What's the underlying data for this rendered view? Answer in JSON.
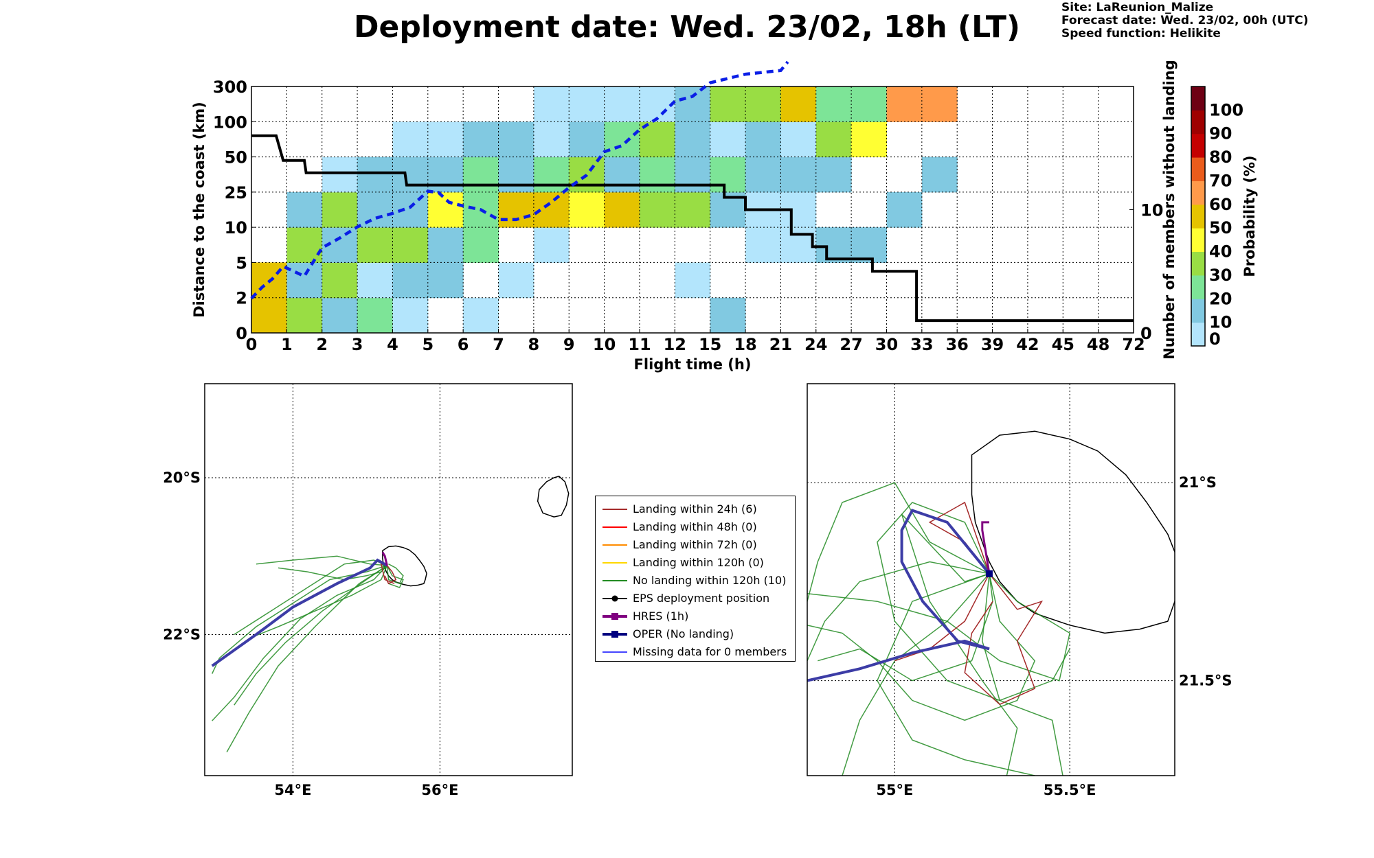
{
  "header": {
    "title": "Deployment date: Wed. 23/02, 18h (LT)",
    "site": "Site: LaReunion_Malize",
    "forecast": "Forecast date: Wed. 23/02, 00h (UTC)",
    "speed": "Speed function: Helikite"
  },
  "chart_data": [
    {
      "type": "heatmap",
      "xlabel": "Flight time (h)",
      "ylabel": "Distance to the coast (km)",
      "y2label": "Number of members without landing",
      "x_ticks": [
        "0",
        "1",
        "2",
        "3",
        "4",
        "5",
        "6",
        "7",
        "8",
        "9",
        "10",
        "11",
        "12",
        "15",
        "18",
        "21",
        "24",
        "27",
        "30",
        "33",
        "36",
        "39",
        "42",
        "45",
        "48",
        "72"
      ],
      "y_ticks": [
        "0",
        "2",
        "5",
        "10",
        "25",
        "50",
        "100",
        "300"
      ],
      "y2_ticks": [
        "0",
        "10"
      ],
      "y2lim": [
        0,
        20
      ],
      "grid": true,
      "colorbar": {
        "label": "Probability (%)",
        "ticks": [
          "0",
          "10",
          "20",
          "30",
          "40",
          "50",
          "60",
          "70",
          "80",
          "90",
          "100"
        ],
        "colors": [
          "#b3e5fc",
          "#81c9e1",
          "#7de497",
          "#99dd44",
          "#ffff33",
          "#e5c300",
          "#ff9a4a",
          "#ea5c1c",
          "#c40000",
          "#9f0000",
          "#6e0014"
        ]
      },
      "cells": [
        [
          0,
          0,
          50
        ],
        [
          0,
          1,
          50
        ],
        [
          1,
          0,
          30
        ],
        [
          1,
          1,
          10
        ],
        [
          1,
          2,
          30
        ],
        [
          1,
          3,
          10
        ],
        [
          2,
          0,
          10
        ],
        [
          2,
          1,
          30
        ],
        [
          2,
          2,
          10
        ],
        [
          2,
          3,
          30
        ],
        [
          2,
          4,
          0
        ],
        [
          3,
          0,
          20
        ],
        [
          3,
          1,
          0
        ],
        [
          3,
          2,
          30
        ],
        [
          3,
          3,
          10
        ],
        [
          3,
          4,
          10
        ],
        [
          4,
          0,
          0
        ],
        [
          4,
          1,
          10
        ],
        [
          4,
          2,
          30
        ],
        [
          4,
          3,
          10
        ],
        [
          4,
          4,
          10
        ],
        [
          4,
          5,
          0
        ],
        [
          5,
          1,
          10
        ],
        [
          5,
          2,
          10
        ],
        [
          5,
          3,
          40
        ],
        [
          5,
          4,
          10
        ],
        [
          5,
          5,
          0
        ],
        [
          6,
          0,
          0
        ],
        [
          6,
          2,
          20
        ],
        [
          6,
          3,
          20
        ],
        [
          6,
          4,
          20
        ],
        [
          6,
          5,
          10
        ],
        [
          7,
          1,
          0
        ],
        [
          7,
          3,
          50
        ],
        [
          7,
          4,
          10
        ],
        [
          7,
          5,
          10
        ],
        [
          8,
          2,
          0
        ],
        [
          8,
          3,
          50
        ],
        [
          8,
          4,
          20
        ],
        [
          8,
          5,
          0
        ],
        [
          8,
          6,
          0
        ],
        [
          9,
          3,
          40
        ],
        [
          9,
          4,
          30
        ],
        [
          9,
          5,
          10
        ],
        [
          9,
          6,
          0
        ],
        [
          10,
          3,
          50
        ],
        [
          10,
          4,
          10
        ],
        [
          10,
          5,
          20
        ],
        [
          10,
          6,
          0
        ],
        [
          11,
          3,
          30
        ],
        [
          11,
          4,
          20
        ],
        [
          11,
          5,
          30
        ],
        [
          11,
          6,
          0
        ],
        [
          12,
          1,
          0
        ],
        [
          12,
          3,
          30
        ],
        [
          12,
          4,
          10
        ],
        [
          12,
          5,
          10
        ],
        [
          12,
          6,
          10
        ],
        [
          13,
          0,
          10
        ],
        [
          13,
          3,
          10
        ],
        [
          13,
          4,
          20
        ],
        [
          13,
          5,
          0
        ],
        [
          13,
          6,
          30
        ],
        [
          14,
          2,
          0
        ],
        [
          14,
          3,
          0
        ],
        [
          14,
          4,
          10
        ],
        [
          14,
          5,
          10
        ],
        [
          14,
          6,
          30
        ],
        [
          15,
          2,
          0
        ],
        [
          15,
          3,
          0
        ],
        [
          15,
          4,
          10
        ],
        [
          15,
          5,
          0
        ],
        [
          15,
          6,
          50
        ],
        [
          16,
          2,
          10
        ],
        [
          16,
          4,
          10
        ],
        [
          16,
          5,
          30
        ],
        [
          16,
          6,
          20
        ],
        [
          17,
          2,
          10
        ],
        [
          17,
          5,
          40
        ],
        [
          17,
          6,
          20
        ],
        [
          18,
          3,
          10
        ],
        [
          18,
          6,
          60
        ],
        [
          19,
          4,
          10
        ],
        [
          19,
          6,
          60
        ]
      ],
      "members_without_landing": [
        [
          0,
          16
        ],
        [
          0.7,
          16
        ],
        [
          0.8,
          15
        ],
        [
          0.9,
          14
        ],
        [
          1.5,
          14
        ],
        [
          1.55,
          13
        ],
        [
          4.35,
          13
        ],
        [
          4.4,
          12
        ],
        [
          13.4,
          12
        ],
        [
          13.4,
          11
        ],
        [
          14,
          11
        ],
        [
          14,
          10
        ],
        [
          15.3,
          10
        ],
        [
          15.3,
          8
        ],
        [
          15.9,
          8
        ],
        [
          15.9,
          7
        ],
        [
          16.3,
          7
        ],
        [
          16.3,
          6
        ],
        [
          17.6,
          6
        ],
        [
          17.6,
          5
        ],
        [
          18.85,
          5
        ],
        [
          18.85,
          1
        ],
        [
          25,
          1
        ]
      ],
      "mean_distance_curve": [
        [
          0,
          2.8
        ],
        [
          0.3,
          3.7
        ],
        [
          0.6,
          4.4
        ],
        [
          0.9,
          5.4
        ],
        [
          1.2,
          5.0
        ],
        [
          1.5,
          4.6
        ],
        [
          2,
          6.9
        ],
        [
          2.5,
          7.7
        ],
        [
          3,
          8.6
        ],
        [
          3.5,
          9.3
        ],
        [
          4,
          9.7
        ],
        [
          4.5,
          10.2
        ],
        [
          5,
          11.5
        ],
        [
          5.3,
          11.4
        ],
        [
          5.6,
          10.6
        ],
        [
          6,
          10.3
        ],
        [
          6.5,
          10.0
        ],
        [
          7,
          9.2
        ],
        [
          7.5,
          9.2
        ],
        [
          8,
          9.6
        ],
        [
          8.5,
          10.6
        ],
        [
          9,
          11.8
        ],
        [
          9.5,
          12.8
        ],
        [
          10,
          14.7
        ],
        [
          10.5,
          15.2
        ],
        [
          11,
          16.5
        ],
        [
          11.5,
          17.4
        ],
        [
          12,
          18.8
        ],
        [
          12.5,
          19.2
        ],
        [
          13,
          20.3
        ],
        [
          14,
          21.0
        ],
        [
          15,
          21.3
        ],
        [
          15.2,
          22.0
        ]
      ]
    },
    {
      "type": "map",
      "name": "overview",
      "lon_ticks": [
        "54°E",
        "56°E"
      ],
      "lat_ticks": [
        "20°S",
        "22°S"
      ],
      "lon_range": [
        52.8,
        57.8
      ],
      "lat_range": [
        -18.8,
        -23.8
      ]
    },
    {
      "type": "map",
      "name": "zoom",
      "lon_ticks": [
        "55°E",
        "55.5°E"
      ],
      "lat_ticks": [
        "21°S",
        "21.5°S"
      ],
      "lon_range": [
        54.75,
        55.8
      ],
      "lat_range": [
        -20.75,
        -21.74
      ]
    }
  ],
  "legend": [
    {
      "label": "Landing within 24h (6)",
      "color": "#a52a2a",
      "marker": "line"
    },
    {
      "label": "Landing within 48h (0)",
      "color": "#ff0000",
      "marker": "line"
    },
    {
      "label": "Landing within 72h (0)",
      "color": "#ff8c00",
      "marker": "line"
    },
    {
      "label": "Landing within 120h (0)",
      "color": "#ffd700",
      "marker": "line"
    },
    {
      "label": "No landing within 120h (10)",
      "color": "#228b22",
      "marker": "line"
    },
    {
      "label": "EPS deployment position",
      "color": "#000000",
      "marker": "circle"
    },
    {
      "label": "HRES (1h)",
      "color": "#800080",
      "marker": "square"
    },
    {
      "label": "OPER (No landing)",
      "color": "#000080",
      "marker": "square"
    },
    {
      "label": "Missing data for 0 members",
      "color": "#4444ff",
      "marker": "line"
    }
  ]
}
